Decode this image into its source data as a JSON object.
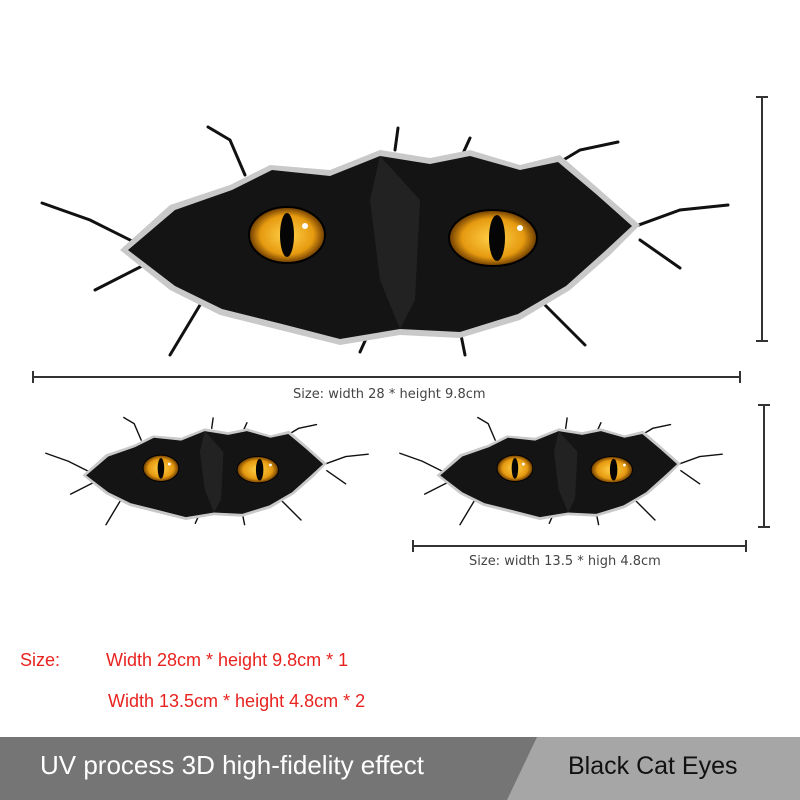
{
  "product": {
    "large_dimension_label": "Size: width 28 * height 9.8cm",
    "small_dimension_label": "Size: width 13.5 * high 4.8cm",
    "size_heading": "Size:",
    "size_lines": [
      "Width 28cm * height 9.8cm * 1",
      "Width 13.5cm * height 4.8cm * 2"
    ]
  },
  "banner": {
    "feature": "UV process 3D high-fidelity effect",
    "name": "Black Cat Eyes"
  },
  "colors": {
    "text_red": "#e8231f",
    "banner_dark": "#757575",
    "banner_light": "#a6a6a6",
    "eye_amber": "#e69a10"
  }
}
